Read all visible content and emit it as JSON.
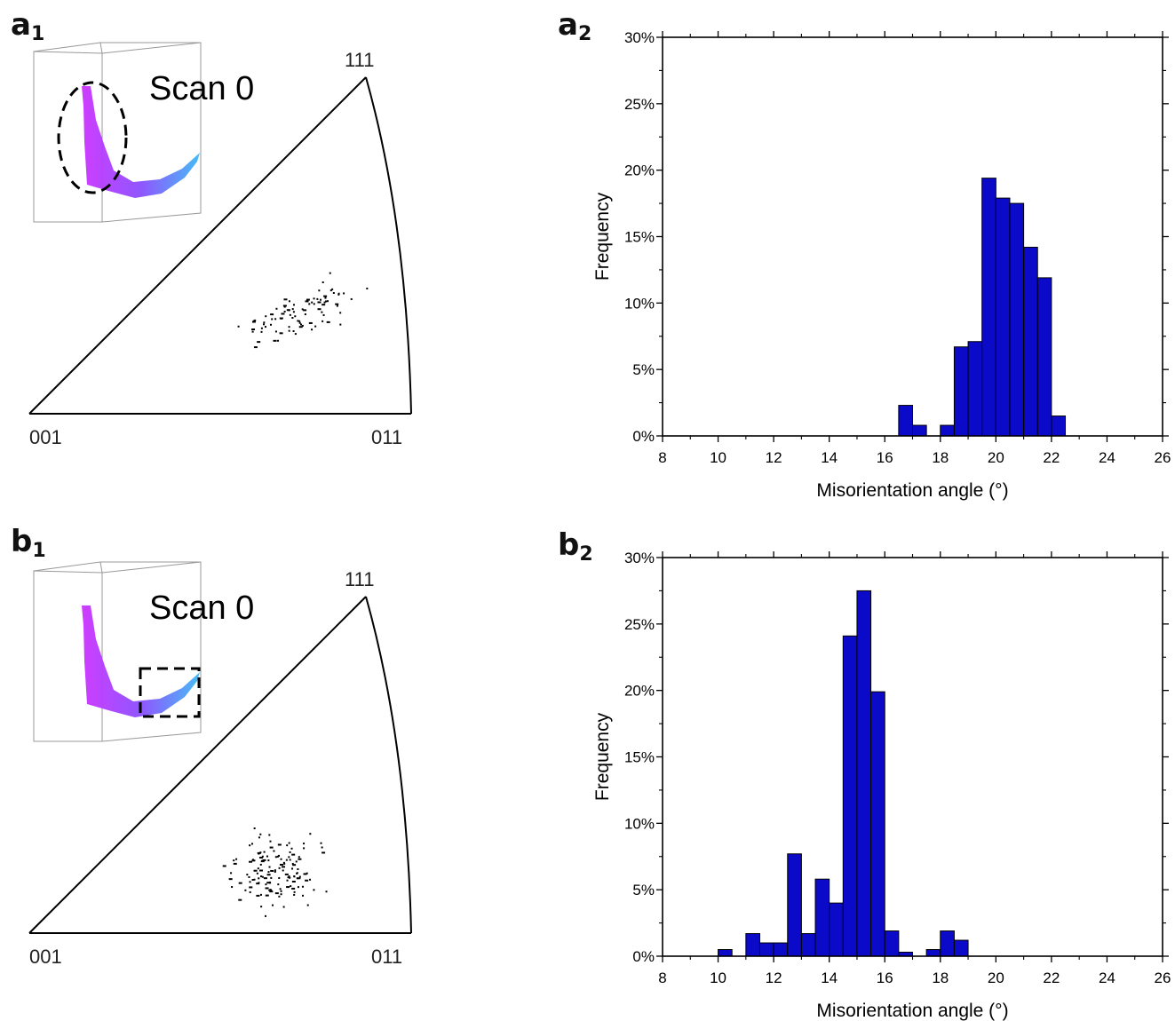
{
  "panels": {
    "a1": {
      "letter": "a",
      "sub": "1"
    },
    "a2": {
      "letter": "a",
      "sub": "2"
    },
    "b1": {
      "letter": "b",
      "sub": "1"
    },
    "b2": {
      "letter": "b",
      "sub": "2"
    }
  },
  "ipf": {
    "corner_001": "001",
    "corner_011": "011",
    "corner_111": "111",
    "inset_label": "Scan 0"
  },
  "colors": {
    "bar_fill": "#0a0ac8",
    "bar_stroke": "#000000",
    "inset_gradient": [
      "#cc33ff",
      "#8a4dff",
      "#3db8f5"
    ]
  },
  "chart_data": [
    {
      "id": "a2",
      "type": "bar",
      "xlabel": "Misorientation angle (°)",
      "ylabel": "Frequency",
      "xlim": [
        8,
        26
      ],
      "ylim": [
        0,
        30
      ],
      "xticks": [
        "8",
        "10",
        "12",
        "14",
        "16",
        "18",
        "20",
        "22",
        "24",
        "26"
      ],
      "yticks": [
        "0%",
        "5%",
        "10%",
        "15%",
        "20%",
        "25%",
        "30%"
      ],
      "bin_width": 0.5,
      "x": [
        16.75,
        17.25,
        18.25,
        18.75,
        19.25,
        19.75,
        20.25,
        20.75,
        21.25,
        21.75,
        22.25
      ],
      "values": [
        2.3,
        0.8,
        0.8,
        6.7,
        7.1,
        19.4,
        17.9,
        17.5,
        14.2,
        11.9,
        1.5
      ]
    },
    {
      "id": "b2",
      "type": "bar",
      "xlabel": "Misorientation angle (°)",
      "ylabel": "Frequency",
      "xlim": [
        8,
        26
      ],
      "ylim": [
        0,
        30
      ],
      "xticks": [
        "8",
        "10",
        "12",
        "14",
        "16",
        "18",
        "20",
        "22",
        "24",
        "26"
      ],
      "yticks": [
        "0%",
        "5%",
        "10%",
        "15%",
        "20%",
        "25%",
        "30%"
      ],
      "bin_width": 0.5,
      "x": [
        10.25,
        11.25,
        11.75,
        12.25,
        12.75,
        13.25,
        13.75,
        14.25,
        14.75,
        15.25,
        15.75,
        16.25,
        16.75,
        17.75,
        18.25,
        18.75
      ],
      "values": [
        0.5,
        1.7,
        1.0,
        1.0,
        7.7,
        1.7,
        5.8,
        4.0,
        24.1,
        27.5,
        19.9,
        1.9,
        0.3,
        0.5,
        1.9,
        1.2
      ]
    }
  ]
}
